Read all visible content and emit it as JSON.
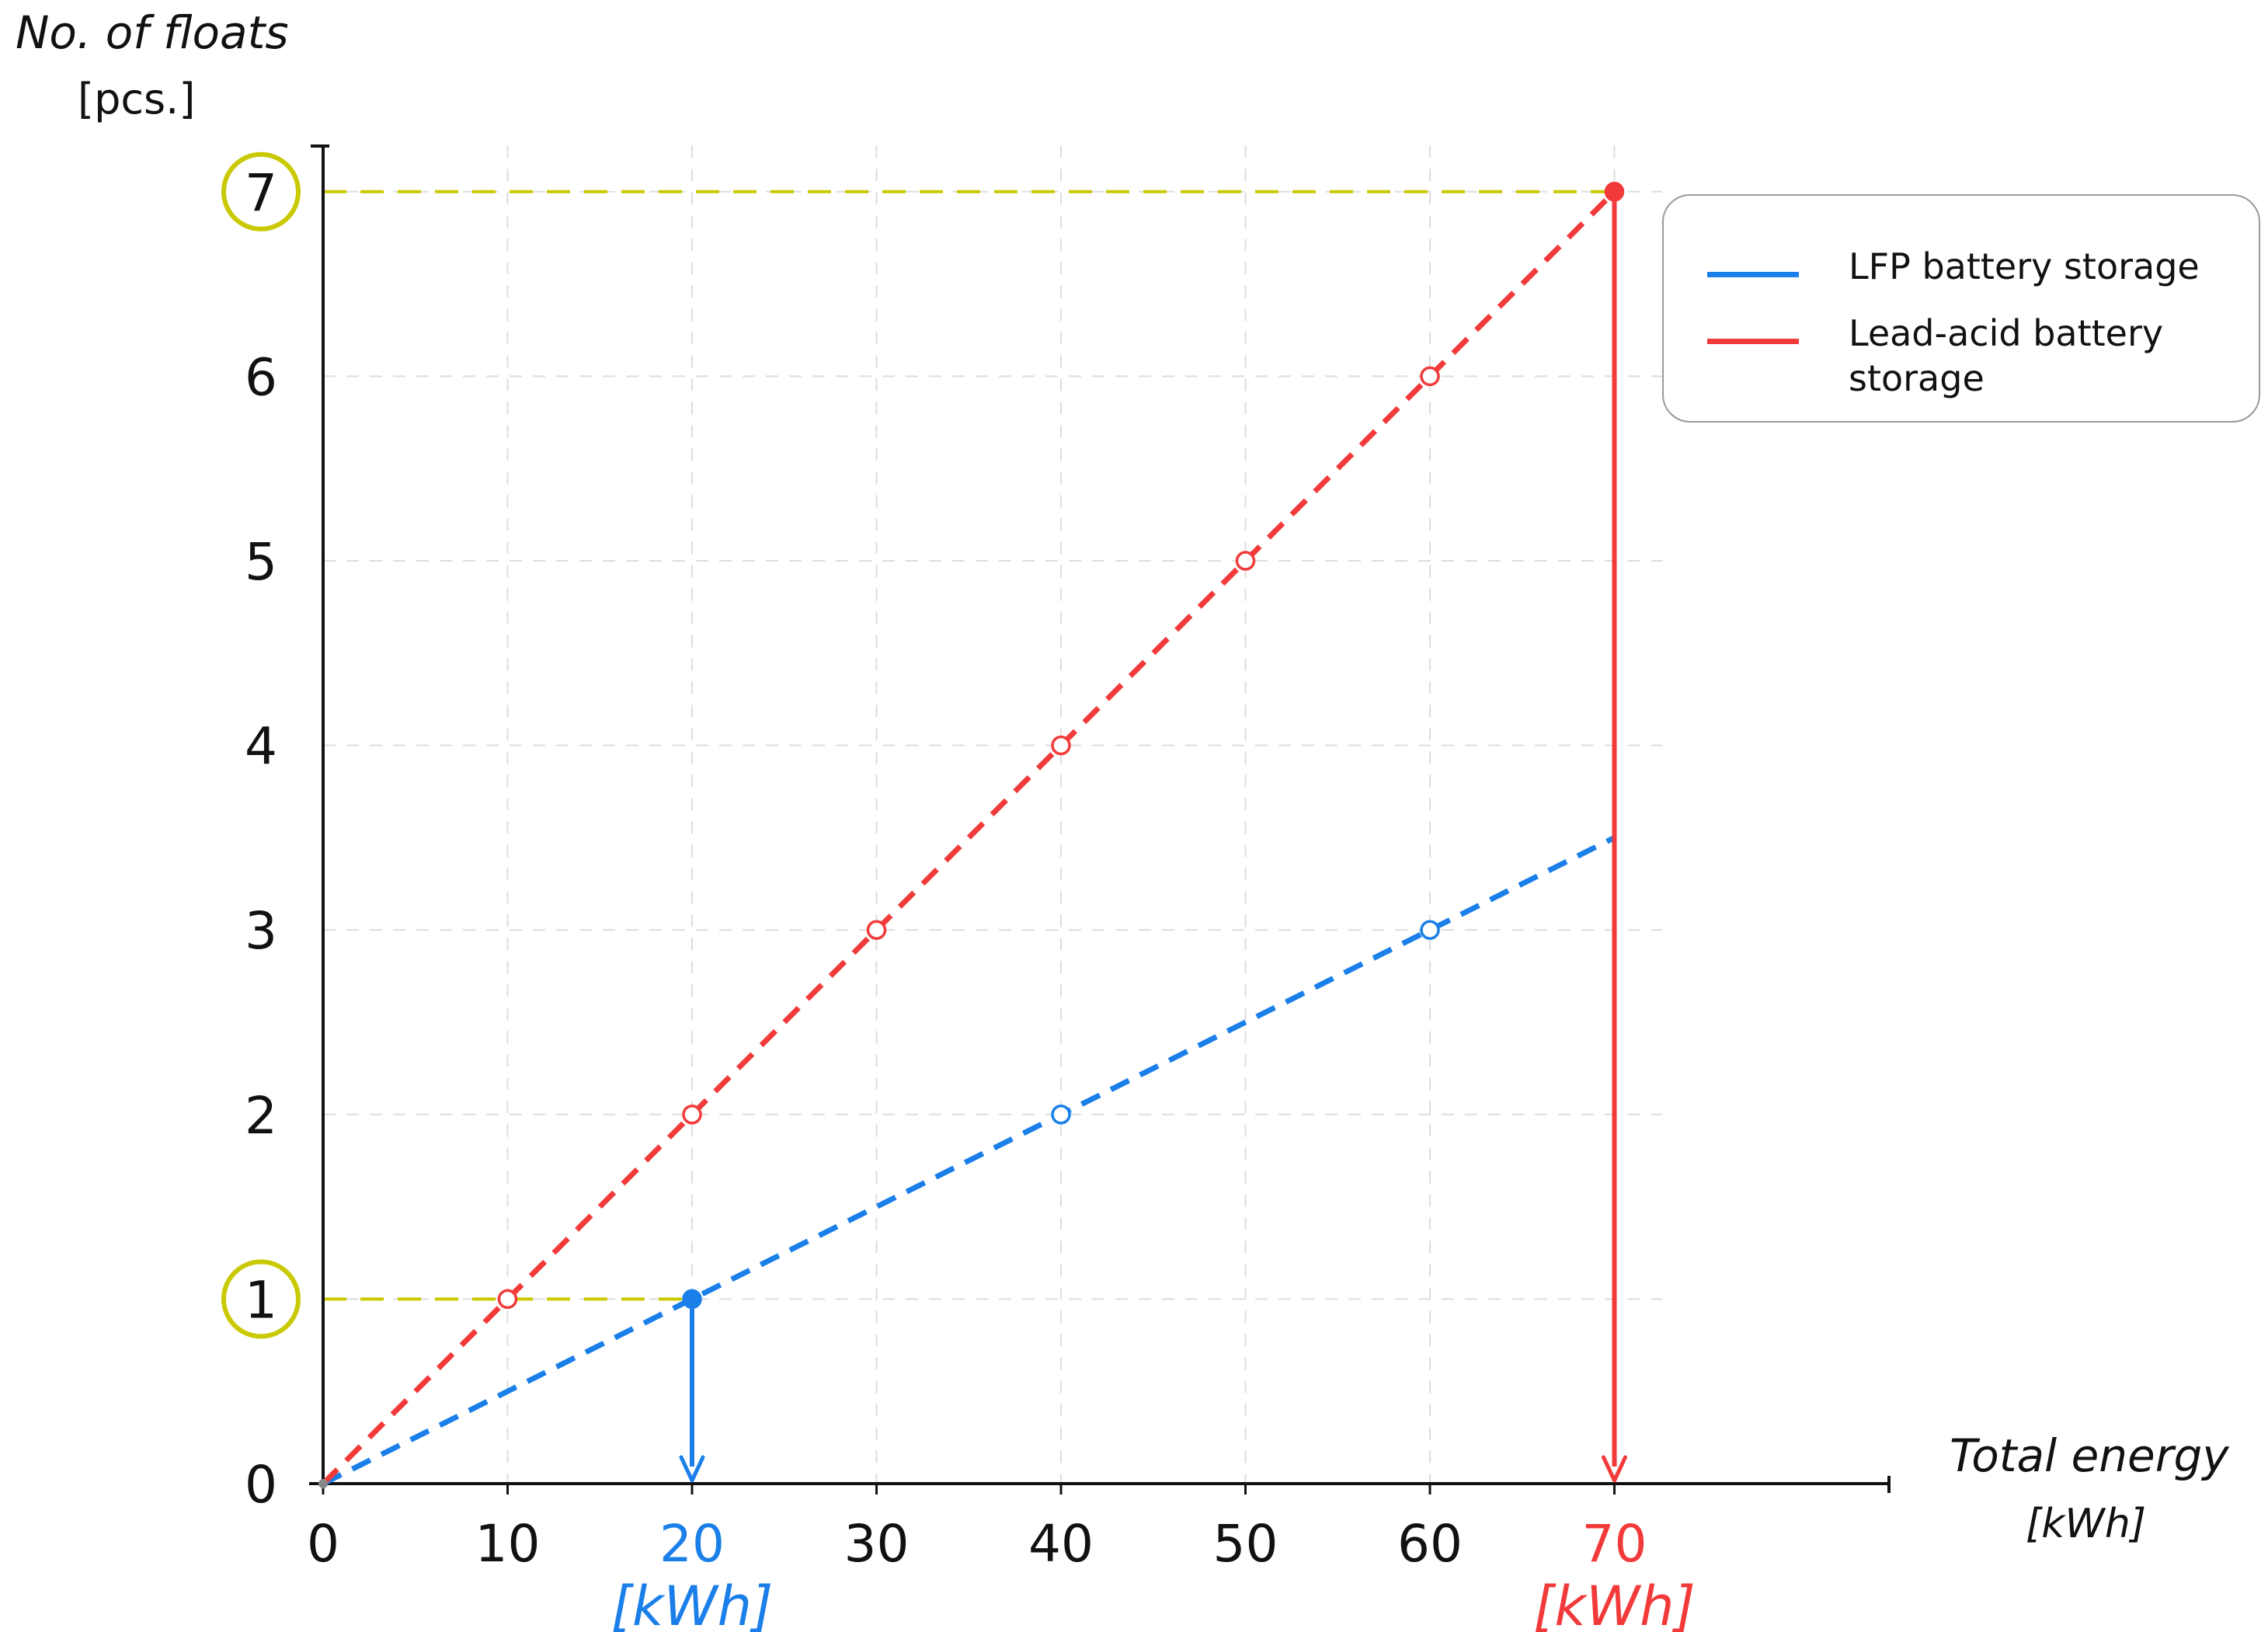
{
  "y_axis": {
    "title": "No. of floats",
    "unit": "[pcs.]"
  },
  "x_axis": {
    "title": "Total energy",
    "unit": "[kWh]"
  },
  "chart_data": {
    "type": "line",
    "x_ticks": [
      0,
      10,
      20,
      30,
      40,
      50,
      60,
      70
    ],
    "y_ticks": [
      0,
      1,
      2,
      3,
      4,
      5,
      6,
      7
    ],
    "xlim": [
      0,
      85
    ],
    "ylim": [
      0,
      7.25
    ],
    "grid": true,
    "legend_position": "top-right",
    "series": [
      {
        "name": "LFP battery storage",
        "color": "#1a7fe8",
        "style": "dashed",
        "line": [
          [
            0,
            0
          ],
          [
            70,
            3.5
          ]
        ],
        "points": [
          [
            20,
            1
          ],
          [
            40,
            2
          ],
          [
            60,
            3
          ]
        ],
        "highlight": {
          "x": 20,
          "y": 1,
          "x_label": "20",
          "unit_label": "[kWh]"
        }
      },
      {
        "name": "Lead-acid battery storage",
        "color": "#f23a3a",
        "style": "dashed",
        "line": [
          [
            0,
            0
          ],
          [
            70,
            7
          ]
        ],
        "points": [
          [
            10,
            1
          ],
          [
            20,
            2
          ],
          [
            30,
            3
          ],
          [
            40,
            4
          ],
          [
            50,
            5
          ],
          [
            60,
            6
          ],
          [
            70,
            7
          ]
        ],
        "highlight": {
          "x": 70,
          "y": 7,
          "x_label": "70",
          "unit_label": "[kWh]"
        }
      }
    ],
    "reference_lines": {
      "y_values": [
        1,
        7
      ],
      "color": "#c9c900"
    },
    "circled_y_ticks": [
      1,
      7
    ],
    "circle_color": "#c9c900"
  }
}
